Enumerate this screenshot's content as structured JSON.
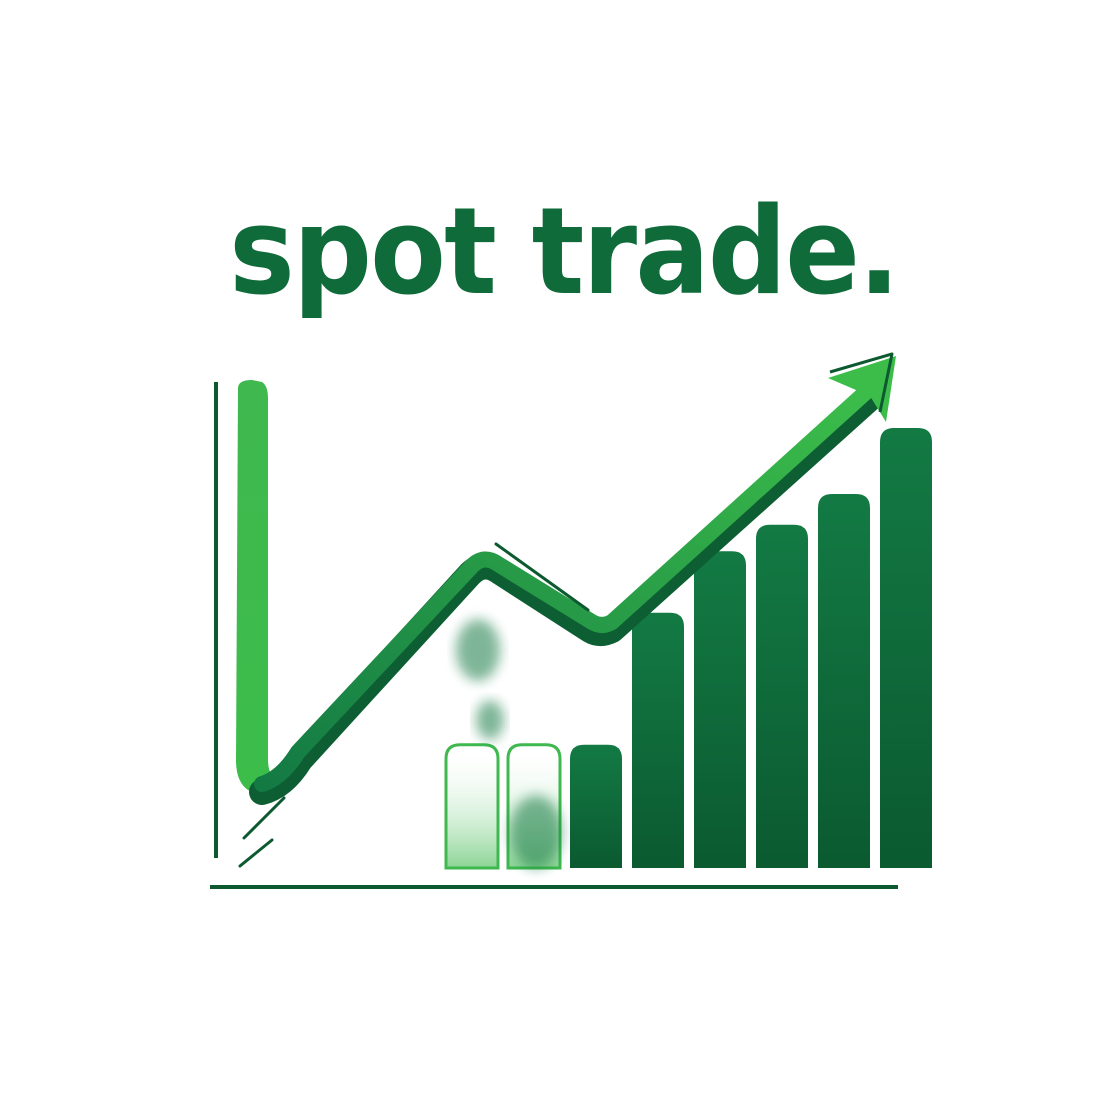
{
  "logo": {
    "wordmark": "spot trade.",
    "emblem_icon": "rising-bar-chart-with-arrow-icon",
    "bar_heights_relative": [
      0.28,
      0.28,
      0.28,
      0.58,
      0.72,
      0.78,
      0.85,
      1.0
    ],
    "trend_points_relative": [
      0.0,
      0.19,
      0.55,
      0.38,
      0.95
    ]
  },
  "colors": {
    "wordmark": "#0f6b3a",
    "bar_dark": "#0b5a30",
    "bar_mid": "#137a44",
    "bar_light": "#3fb84f",
    "arrow_green": "#3cbd4a",
    "arrow_shadow": "#0d5f33",
    "axis": "#0d5a30",
    "background": "#ffffff"
  }
}
